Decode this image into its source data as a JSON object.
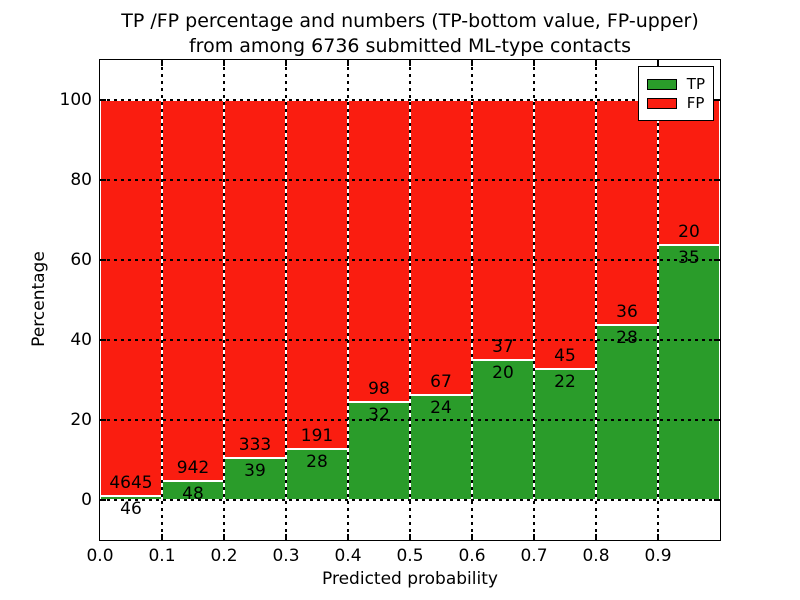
{
  "chart_data": {
    "type": "bar",
    "stacked": true,
    "normalized_to_percent": true,
    "title_lines": [
      "TP /FP percentage and numbers (TP-bottom value, FP-upper)",
      "from among 6736 submitted ML-type contacts"
    ],
    "total_contacts": 6736,
    "xlabel": "Predicted probability",
    "ylabel": "Percentage",
    "xlim": [
      0.0,
      1.0
    ],
    "ylim": [
      -10,
      110
    ],
    "bar_width": 0.1,
    "bin_starts": [
      0.0,
      0.1,
      0.2,
      0.3,
      0.4,
      0.5,
      0.6,
      0.7,
      0.8,
      0.9
    ],
    "xtick_labels": [
      "0.0",
      "0.1",
      "0.2",
      "0.3",
      "0.4",
      "0.5",
      "0.6",
      "0.7",
      "0.8",
      "0.9"
    ],
    "ytick_values": [
      0,
      20,
      40,
      60,
      80,
      100
    ],
    "grid": true,
    "legend_position": "upper right",
    "series": [
      {
        "name": "TP",
        "color": "#2a9c2a",
        "counts": [
          46,
          48,
          39,
          28,
          32,
          24,
          20,
          22,
          28,
          35
        ],
        "percent": [
          0.98,
          4.85,
          10.48,
          12.79,
          24.62,
          26.37,
          35.09,
          32.84,
          43.75,
          63.64
        ]
      },
      {
        "name": "FP",
        "color": "#fa1d10",
        "counts": [
          4645,
          942,
          333,
          191,
          98,
          67,
          37,
          45,
          36,
          20
        ],
        "percent": [
          99.02,
          95.15,
          89.52,
          87.21,
          75.38,
          73.63,
          64.91,
          67.16,
          56.25,
          36.36
        ]
      }
    ]
  },
  "colors": {
    "background": "#ffffff",
    "bar_edge": "#ffffff",
    "grid": "#000000",
    "spine": "#000000",
    "text": "#000000"
  }
}
